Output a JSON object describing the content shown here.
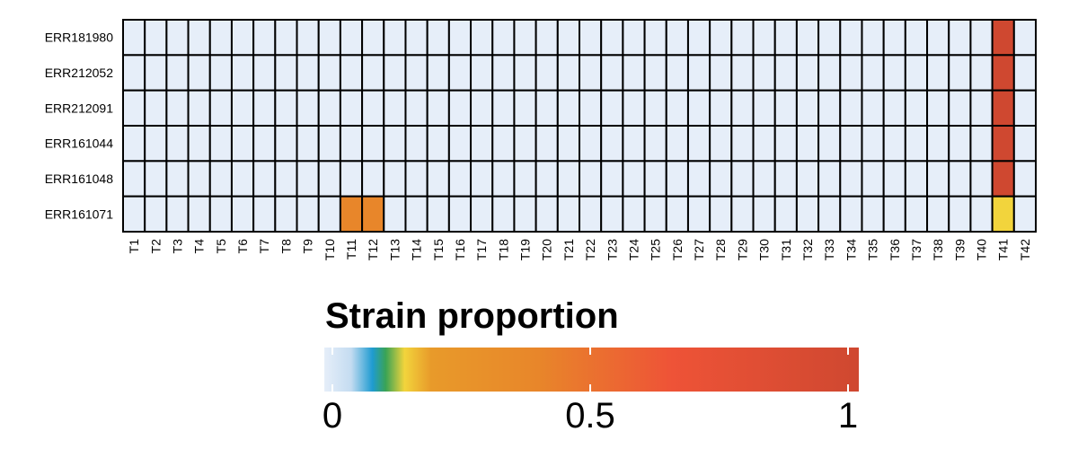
{
  "chart_data": {
    "type": "heatmap",
    "rows": [
      "ERR181980",
      "ERR212052",
      "ERR212091",
      "ERR161044",
      "ERR161048",
      "ERR161071"
    ],
    "columns": [
      "T1",
      "T2",
      "T3",
      "T4",
      "T5",
      "T6",
      "T7",
      "T8",
      "T9",
      "T10",
      "T11",
      "T12",
      "T13",
      "T14",
      "T15",
      "T16",
      "T17",
      "T18",
      "T19",
      "T20",
      "T21",
      "T22",
      "T23",
      "T24",
      "T25",
      "T26",
      "T27",
      "T28",
      "T29",
      "T30",
      "T31",
      "T32",
      "T33",
      "T34",
      "T35",
      "T36",
      "T37",
      "T38",
      "T39",
      "T40",
      "T41",
      "T42"
    ],
    "nonzero_values": [
      {
        "row": "ERR181980",
        "column": "T41",
        "value": 1.0
      },
      {
        "row": "ERR212052",
        "column": "T41",
        "value": 1.0
      },
      {
        "row": "ERR212091",
        "column": "T41",
        "value": 1.0
      },
      {
        "row": "ERR161044",
        "column": "T41",
        "value": 1.0
      },
      {
        "row": "ERR161048",
        "column": "T41",
        "value": 1.0
      },
      {
        "row": "ERR161071",
        "column": "T11",
        "value": 0.4
      },
      {
        "row": "ERR161071",
        "column": "T12",
        "value": 0.4
      },
      {
        "row": "ERR161071",
        "column": "T41",
        "value": 0.15
      }
    ],
    "default_value": 0,
    "legend": {
      "title": "Strain proportion",
      "range": [
        0,
        1
      ],
      "ticks": [
        0,
        0.5,
        1
      ],
      "tick_labels": [
        "0",
        "0.5",
        "1"
      ],
      "color_stops": [
        {
          "value": 0.0,
          "color": "#e6eef9"
        },
        {
          "value": 0.05,
          "color": "#c4dcf1"
        },
        {
          "value": 0.09,
          "color": "#1f9bd1"
        },
        {
          "value": 0.115,
          "color": "#3aa355"
        },
        {
          "value": 0.15,
          "color": "#f2d43c"
        },
        {
          "value": 0.2,
          "color": "#e89a2a"
        },
        {
          "value": 0.4,
          "color": "#e8862a"
        },
        {
          "value": 0.65,
          "color": "#ee5337"
        },
        {
          "value": 1.0,
          "color": "#cf4830"
        }
      ]
    },
    "grid_color": "#000000"
  }
}
